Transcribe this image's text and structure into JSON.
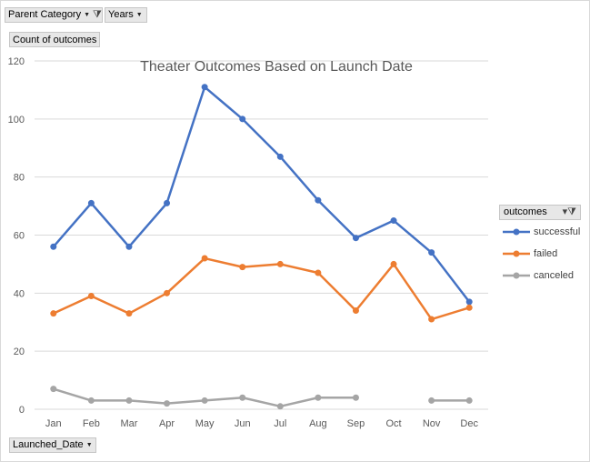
{
  "filters": {
    "parent_category": "Parent Category",
    "years": "Years"
  },
  "value_field": "Count of outcomes",
  "axis_field": "Launched_Date",
  "legend": {
    "title": "outcomes"
  },
  "colors": {
    "successful": "#4472C4",
    "failed": "#ED7D31",
    "canceled": "#A5A5A5",
    "grid": "#d9d9d9",
    "text": "#595959"
  },
  "chart_data": {
    "type": "line",
    "title": "Theater Outcomes Based on Launch Date",
    "categories": [
      "Jan",
      "Feb",
      "Mar",
      "Apr",
      "May",
      "Jun",
      "Jul",
      "Aug",
      "Sep",
      "Oct",
      "Nov",
      "Dec"
    ],
    "ylim": [
      0,
      120
    ],
    "yticks": [
      "0",
      "20",
      "40",
      "60",
      "80",
      "100",
      "120"
    ],
    "grid": true,
    "legend_position": "right",
    "series": [
      {
        "name": "successful",
        "color": "#4472C4",
        "values": [
          56,
          71,
          56,
          71,
          111,
          100,
          87,
          72,
          59,
          65,
          54,
          37
        ]
      },
      {
        "name": "failed",
        "color": "#ED7D31",
        "values": [
          33,
          39,
          33,
          40,
          52,
          49,
          50,
          47,
          34,
          50,
          31,
          35
        ]
      },
      {
        "name": "canceled",
        "color": "#A5A5A5",
        "values": [
          7,
          3,
          3,
          2,
          3,
          4,
          1,
          4,
          4,
          null,
          3,
          3
        ]
      }
    ]
  }
}
